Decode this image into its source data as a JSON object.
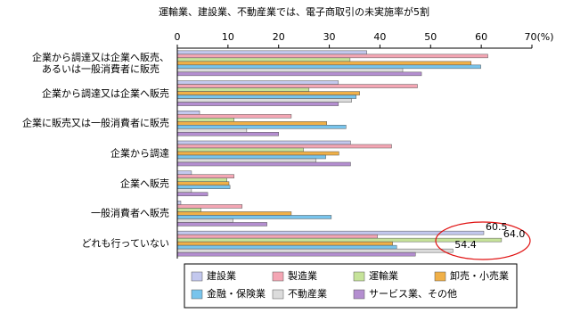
{
  "chart_data": {
    "type": "hbar",
    "title": "運輸業、建設業、不動産業では、電子商取引の未実施率が5割",
    "categories": [
      "企業から調達又は企業へ販売、\nあるいは一般消費者に販売",
      "企業から調達又は企業へ販売",
      "企業に販売又は一般消費者に販売",
      "企業から調達",
      "企業へ販売",
      "一般消費者へ販売",
      "どれも行っていない"
    ],
    "xlim": [
      0,
      70
    ],
    "xticks": [
      0,
      10,
      20,
      30,
      40,
      50,
      60,
      {
        "value": 70,
        "label": "70(%)"
      }
    ],
    "series": [
      {
        "name": "建設業",
        "color": "#c3c8ee",
        "values": [
          37.4,
          31.8,
          4.4,
          34.2,
          2.8,
          0.7,
          60.5
        ],
        "value_labels": [
          null,
          null,
          null,
          null,
          null,
          null,
          "60.5"
        ]
      },
      {
        "name": "製造業",
        "color": "#f4a6b4",
        "values": [
          61.3,
          47.4,
          22.5,
          42.3,
          11.2,
          12.8,
          39.5
        ]
      },
      {
        "name": "運輸業",
        "color": "#c6e39a",
        "values": [
          34.1,
          26.0,
          11.2,
          24.9,
          9.8,
          4.7,
          64.0
        ],
        "value_labels": [
          null,
          null,
          null,
          null,
          null,
          null,
          "64.0"
        ]
      },
      {
        "name": "卸売・小売業",
        "color": "#f0b048",
        "values": [
          58.0,
          36.0,
          29.5,
          31.9,
          10.2,
          22.5,
          42.5
        ]
      },
      {
        "name": "金融・保険業",
        "color": "#78c4ec",
        "values": [
          59.9,
          35.3,
          33.3,
          29.3,
          10.4,
          30.4,
          43.3
        ]
      },
      {
        "name": "不動産業",
        "color": "#dcdcdc",
        "values": [
          44.5,
          34.4,
          13.7,
          27.4,
          2.8,
          11.0,
          54.4
        ],
        "value_labels": [
          null,
          null,
          null,
          null,
          null,
          null,
          "54.4"
        ]
      },
      {
        "name": "サービス業、その他",
        "color": "#b48ed0",
        "values": [
          48.2,
          31.8,
          20.0,
          34.2,
          6.0,
          17.7,
          47.0
        ]
      }
    ]
  }
}
